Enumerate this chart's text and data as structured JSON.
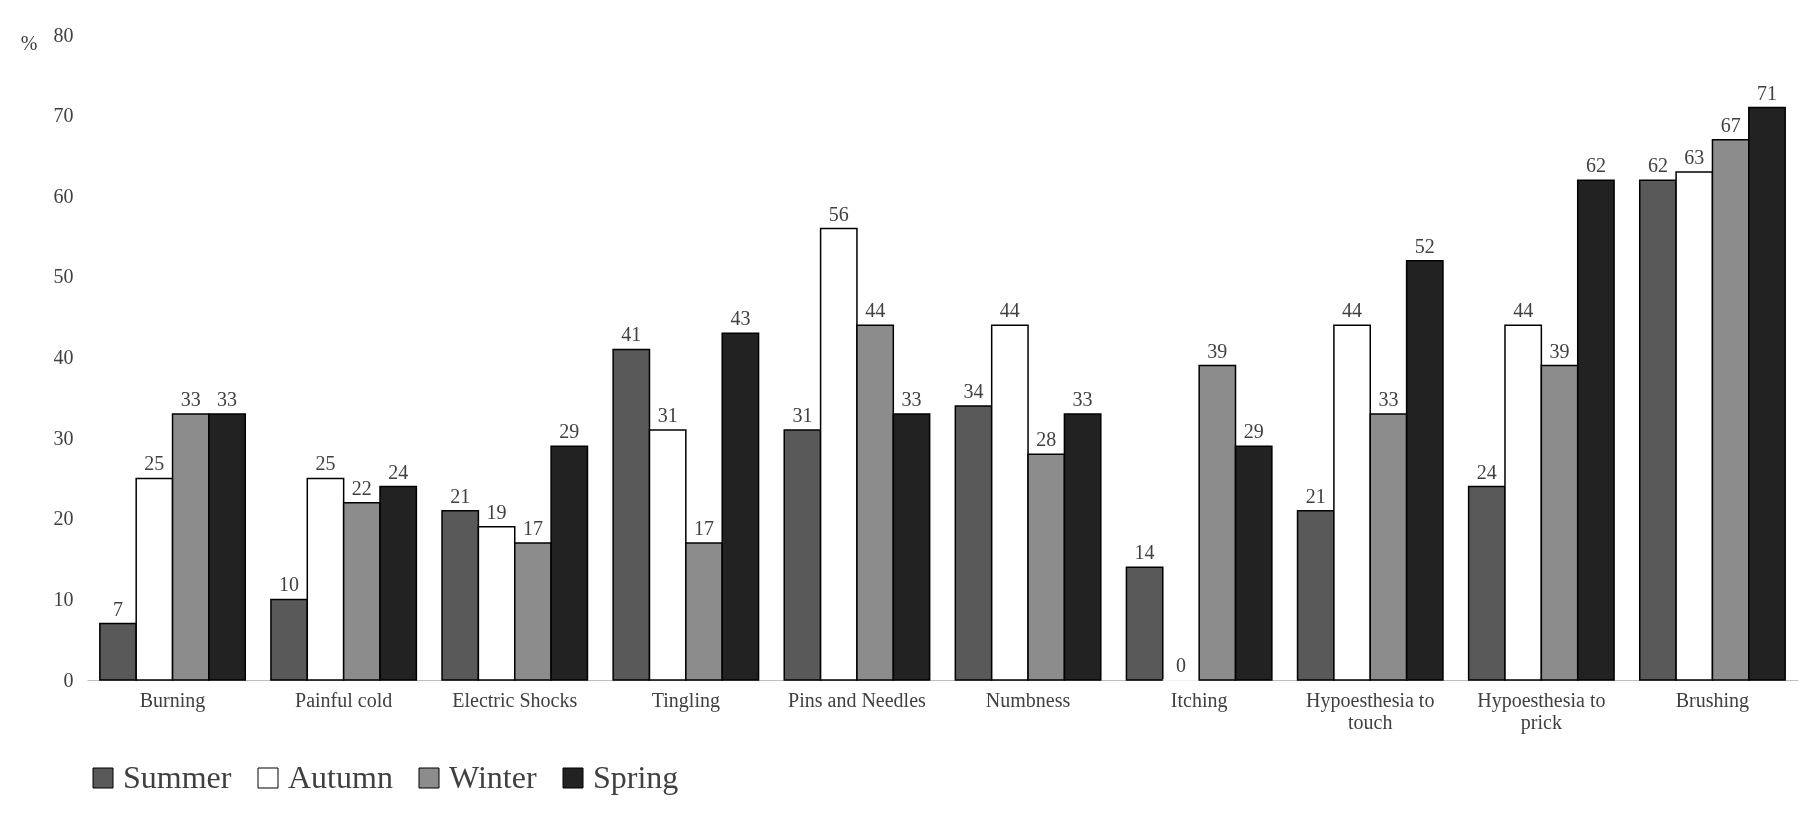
{
  "chart_data": {
    "type": "bar",
    "ylabel": "%",
    "categories": [
      "Burning",
      "Painful cold",
      "Electric Shocks",
      "Tingling",
      "Pins and Needles",
      "Numbness",
      "Itching",
      "Hypoesthesia to touch",
      "Hypoesthesia to prick",
      "Brushing"
    ],
    "series": [
      {
        "name": "Summer",
        "color": "#595959",
        "values": [
          7,
          10,
          21,
          41,
          31,
          34,
          14,
          21,
          24,
          62
        ]
      },
      {
        "name": "Autumn",
        "color": "#ffffff",
        "values": [
          25,
          25,
          19,
          31,
          56,
          44,
          0,
          44,
          44,
          63
        ]
      },
      {
        "name": "Winter",
        "color": "#8c8c8c",
        "values": [
          33,
          22,
          17,
          17,
          44,
          28,
          39,
          33,
          39,
          67
        ]
      },
      {
        "name": "Spring",
        "color": "#222222",
        "values": [
          33,
          24,
          29,
          43,
          33,
          33,
          29,
          52,
          62,
          71
        ]
      }
    ],
    "ylim": [
      0,
      80
    ],
    "yticks": [
      0,
      10,
      20,
      30,
      40,
      50,
      60,
      70,
      80
    ],
    "grid": false,
    "legend": "bottom",
    "data_labels": true
  }
}
